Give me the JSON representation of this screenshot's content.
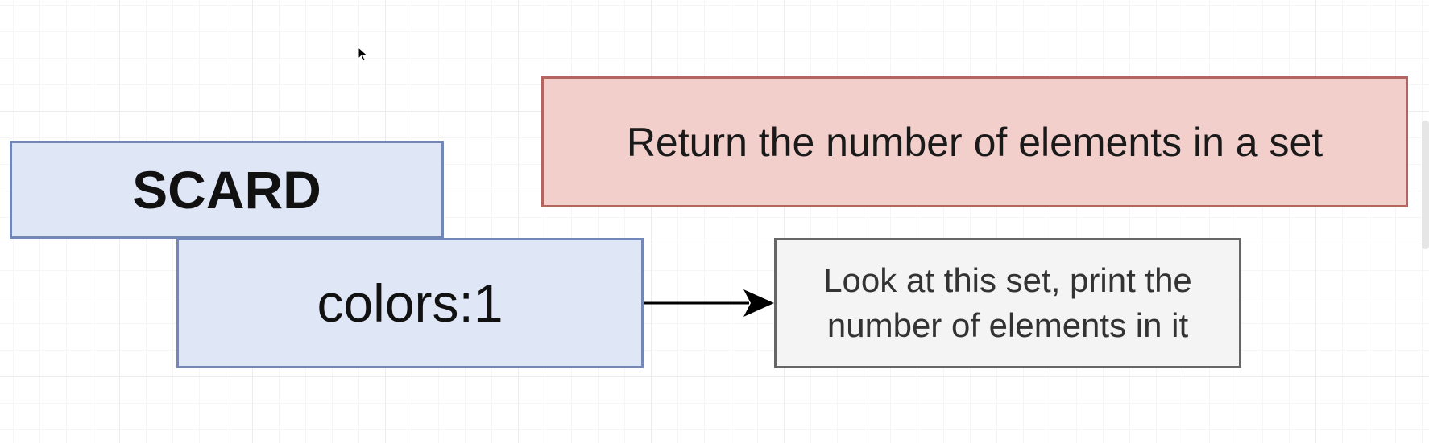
{
  "command": {
    "name": "SCARD",
    "key": "colors:1"
  },
  "description": "Return the number of elements in a set",
  "note": {
    "line1": "Look at this set, print the",
    "line2": "number of elements in it"
  },
  "colors": {
    "command_fill": "#dfe6f6",
    "command_border": "#7388b8",
    "description_fill": "#f2cfca",
    "description_border": "#b46560",
    "note_fill": "#f4f4f4",
    "note_border": "#666666"
  },
  "icons": [
    "mouse-cursor-icon",
    "arrow-connector"
  ]
}
